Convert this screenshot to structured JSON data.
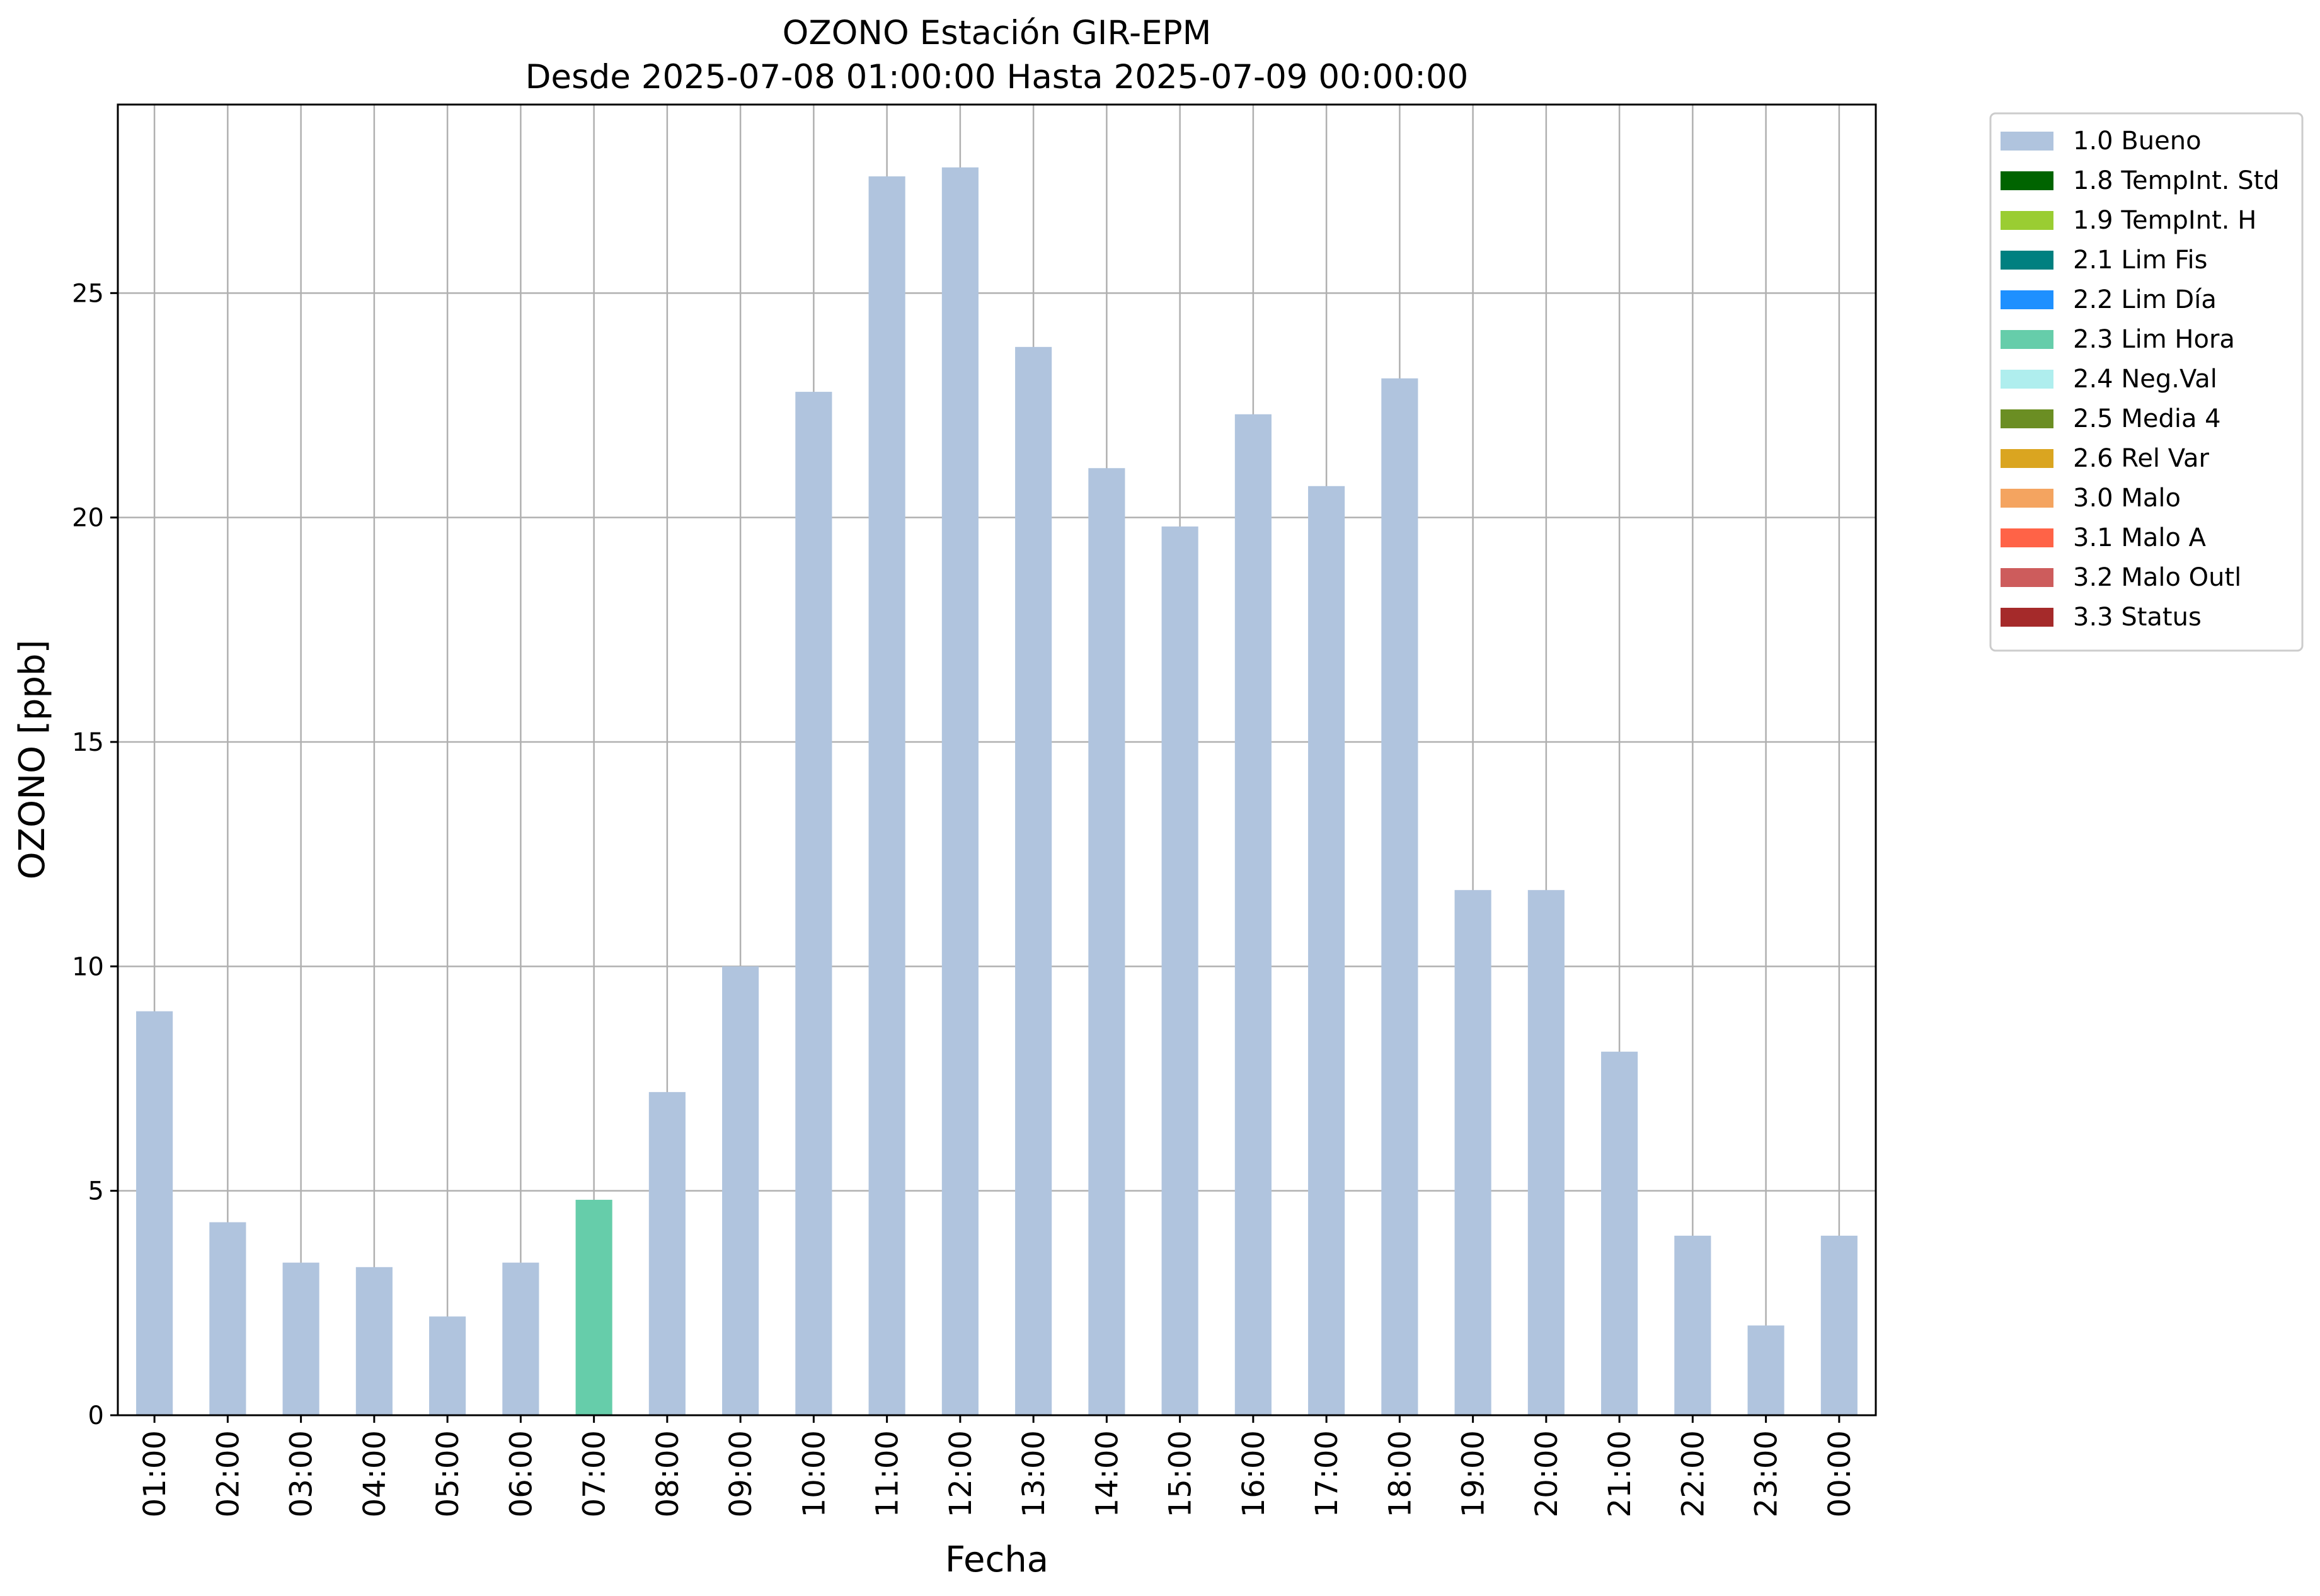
{
  "chart_data": {
    "type": "bar",
    "title": "OZONO Estación GIR-EPM",
    "subtitle": "Desde 2025-07-08 01:00:00 Hasta 2025-07-09 00:00:00",
    "xlabel": "Fecha",
    "ylabel": "OZONO [ppb]",
    "categories": [
      "01:00",
      "02:00",
      "03:00",
      "04:00",
      "05:00",
      "06:00",
      "07:00",
      "08:00",
      "09:00",
      "10:00",
      "11:00",
      "12:00",
      "13:00",
      "14:00",
      "15:00",
      "16:00",
      "17:00",
      "18:00",
      "19:00",
      "20:00",
      "21:00",
      "22:00",
      "23:00",
      "00:00"
    ],
    "values": [
      9.0,
      4.3,
      3.4,
      3.3,
      2.2,
      3.4,
      4.8,
      7.2,
      10.0,
      22.8,
      27.6,
      27.8,
      23.8,
      21.1,
      19.8,
      22.3,
      20.7,
      23.1,
      11.7,
      11.7,
      8.1,
      4.0,
      2.0,
      4.0
    ],
    "flags": [
      "1.0 Bueno",
      "1.0 Bueno",
      "1.0 Bueno",
      "1.0 Bueno",
      "1.0 Bueno",
      "1.0 Bueno",
      "2.3 Lim Hora",
      "1.0 Bueno",
      "1.0 Bueno",
      "1.0 Bueno",
      "1.0 Bueno",
      "1.0 Bueno",
      "1.0 Bueno",
      "1.0 Bueno",
      "1.0 Bueno",
      "1.0 Bueno",
      "1.0 Bueno",
      "1.0 Bueno",
      "1.0 Bueno",
      "1.0 Bueno",
      "1.0 Bueno",
      "1.0 Bueno",
      "1.0 Bueno",
      "1.0 Bueno"
    ],
    "ylim": [
      0,
      29.2
    ],
    "yticks": [
      0,
      5,
      10,
      15,
      20,
      25
    ],
    "grid": true,
    "legend_position": "outside-top-right",
    "legend": [
      {
        "label": "1.0 Bueno",
        "color": "#b0c4de"
      },
      {
        "label": "1.8 TempInt. Std",
        "color": "#006400"
      },
      {
        "label": "1.9 TempInt. H",
        "color": "#9acd32"
      },
      {
        "label": "2.1 Lim Fis",
        "color": "#008080"
      },
      {
        "label": "2.2 Lim Día",
        "color": "#1e90ff"
      },
      {
        "label": "2.3 Lim Hora",
        "color": "#66cdaa"
      },
      {
        "label": "2.4 Neg.Val",
        "color": "#afeeee"
      },
      {
        "label": "2.5 Media 4",
        "color": "#6b8e23"
      },
      {
        "label": "2.6 Rel Var",
        "color": "#daa520"
      },
      {
        "label": "3.0 Malo",
        "color": "#f4a460"
      },
      {
        "label": "3.1 Malo A",
        "color": "#ff6347"
      },
      {
        "label": "3.2 Malo Outl",
        "color": "#cd5c5c"
      },
      {
        "label": "3.3 Status",
        "color": "#a52a2a"
      }
    ]
  }
}
